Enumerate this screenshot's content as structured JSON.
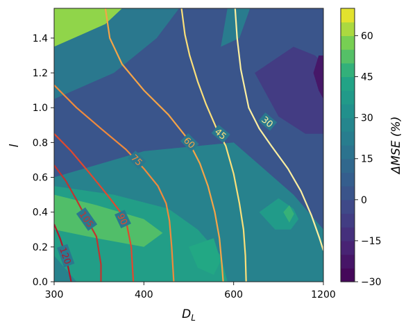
{
  "chart_data": {
    "type": "contour",
    "xlabel": "D",
    "xlabel_sub": "L",
    "ylabel": "l",
    "xticks": [
      300,
      400,
      600,
      1200
    ],
    "xtick_labels": [
      "300",
      "400",
      "600",
      "1200"
    ],
    "xlim": [
      300,
      1200
    ],
    "yticks": [
      0.0,
      0.2,
      0.4,
      0.6,
      0.8,
      1.0,
      1.2,
      1.4
    ],
    "ytick_labels": [
      "0.0",
      "0.2",
      "0.4",
      "0.6",
      "0.8",
      "1.0",
      "1.2",
      "1.4"
    ],
    "ylim": [
      0,
      1.571
    ],
    "grid": false,
    "colorbar": {
      "label": "ΔMSE (%)",
      "range": [
        -30,
        70
      ],
      "ticks": [
        -30,
        -15,
        0,
        15,
        30,
        45,
        60
      ],
      "tick_labels": [
        "−30",
        "−15",
        "0",
        "15",
        "30",
        "45",
        "60"
      ],
      "colormap": "viridis"
    },
    "contour_lines": [
      {
        "level": 120,
        "label": "120",
        "color": "#b0182c",
        "points": [
          [
            300,
            0.33
          ],
          [
            305,
            0.25
          ],
          [
            310,
            0.15
          ],
          [
            315,
            0.0
          ]
        ]
      },
      {
        "level": 105,
        "label": "105",
        "color": "#c2332f",
        "points": [
          [
            300,
            0.67
          ],
          [
            310,
            0.58
          ],
          [
            320,
            0.47
          ],
          [
            330,
            0.36
          ],
          [
            340,
            0.26
          ],
          [
            345,
            0.1
          ],
          [
            345,
            0.0
          ]
        ]
      },
      {
        "level": 90,
        "label": "90",
        "color": "#e0492e",
        "points": [
          [
            300,
            0.85
          ],
          [
            315,
            0.75
          ],
          [
            332,
            0.63
          ],
          [
            352,
            0.5
          ],
          [
            368,
            0.4
          ],
          [
            376,
            0.33
          ],
          [
            382,
            0.2
          ],
          [
            385,
            0.0
          ]
        ]
      },
      {
        "level": 75,
        "label": "75",
        "color": "#f08a3c",
        "points": [
          [
            300,
            1.13
          ],
          [
            320,
            1.0
          ],
          [
            345,
            0.88
          ],
          [
            375,
            0.76
          ],
          [
            400,
            0.65
          ],
          [
            422,
            0.55
          ],
          [
            436,
            0.45
          ],
          [
            442,
            0.35
          ],
          [
            446,
            0.2
          ],
          [
            450,
            0.0
          ]
        ]
      },
      {
        "level": 60,
        "label": "60",
        "color": "#f5a447",
        "points": [
          [
            350,
            1.57
          ],
          [
            355,
            1.4
          ],
          [
            370,
            1.25
          ],
          [
            400,
            1.1
          ],
          [
            440,
            0.96
          ],
          [
            475,
            0.83
          ],
          [
            505,
            0.68
          ],
          [
            525,
            0.55
          ],
          [
            543,
            0.4
          ],
          [
            556,
            0.25
          ],
          [
            563,
            0.1
          ],
          [
            567,
            0.0
          ]
        ]
      },
      {
        "level": 45,
        "label": "45",
        "color": "#fbe07a",
        "points": [
          [
            465,
            1.57
          ],
          [
            472,
            1.42
          ],
          [
            482,
            1.3
          ],
          [
            500,
            1.15
          ],
          [
            520,
            1.02
          ],
          [
            548,
            0.88
          ],
          [
            575,
            0.78
          ],
          [
            600,
            0.62
          ],
          [
            620,
            0.45
          ],
          [
            635,
            0.3
          ],
          [
            642,
            0.15
          ],
          [
            645,
            0.0
          ]
        ]
      },
      {
        "level": 30,
        "label": "30",
        "color": "#fcefa0",
        "points": [
          [
            605,
            1.57
          ],
          [
            612,
            1.4
          ],
          [
            625,
            1.22
          ],
          [
            655,
            1.0
          ],
          [
            700,
            0.88
          ],
          [
            760,
            0.78
          ],
          [
            860,
            0.65
          ],
          [
            960,
            0.52
          ],
          [
            1060,
            0.38
          ],
          [
            1150,
            0.25
          ],
          [
            1200,
            0.18
          ]
        ]
      }
    ],
    "contour_labels": [
      {
        "text": "120",
        "x": 310,
        "y": 0.15,
        "color": "#b0182c",
        "rotation": 70
      },
      {
        "text": "105",
        "x": 330,
        "y": 0.36,
        "color": "#c2332f",
        "rotation": 55
      },
      {
        "text": "90",
        "x": 371,
        "y": 0.36,
        "color": "#e0492e",
        "rotation": 65
      },
      {
        "text": "75",
        "x": 390,
        "y": 0.7,
        "color": "#f08a3c",
        "rotation": 45
      },
      {
        "text": "60",
        "x": 482,
        "y": 0.8,
        "color": "#f5a447",
        "rotation": 45
      },
      {
        "text": "45",
        "x": 560,
        "y": 0.85,
        "color": "#fbe07a",
        "rotation": 40
      },
      {
        "text": "30",
        "x": 740,
        "y": 0.92,
        "color": "#fcefa0",
        "rotation": 40
      }
    ],
    "fill_regions": [
      {
        "value": 3,
        "points": [
          [
            300,
            0.6
          ],
          [
            300,
            1.57
          ],
          [
            1200,
            1.57
          ],
          [
            1200,
            0.3
          ],
          [
            900,
            0.5
          ],
          [
            600,
            0.8
          ],
          [
            400,
            0.75
          ]
        ]
      },
      {
        "value": 25,
        "points": [
          [
            300,
            0.0
          ],
          [
            300,
            0.6
          ],
          [
            400,
            0.75
          ],
          [
            600,
            0.8
          ],
          [
            900,
            0.5
          ],
          [
            1200,
            0.3
          ],
          [
            1200,
            0.0
          ]
        ]
      },
      {
        "value": 40,
        "points": [
          [
            300,
            0.15
          ],
          [
            300,
            0.55
          ],
          [
            360,
            0.5
          ],
          [
            440,
            0.42
          ],
          [
            500,
            0.3
          ],
          [
            560,
            0.15
          ],
          [
            580,
            0.0
          ],
          [
            320,
            0.0
          ]
        ]
      },
      {
        "value": 52,
        "points": [
          [
            300,
            0.3
          ],
          [
            300,
            0.5
          ],
          [
            340,
            0.44
          ],
          [
            400,
            0.36
          ],
          [
            430,
            0.28
          ],
          [
            400,
            0.2
          ],
          [
            340,
            0.25
          ]
        ]
      },
      {
        "value": 45,
        "points": [
          [
            480,
            0.2
          ],
          [
            540,
            0.25
          ],
          [
            560,
            0.12
          ],
          [
            540,
            0.04
          ],
          [
            500,
            0.08
          ]
        ]
      },
      {
        "value": 38,
        "points": [
          [
            700,
            0.4
          ],
          [
            800,
            0.48
          ],
          [
            900,
            0.42
          ],
          [
            940,
            0.36
          ],
          [
            880,
            0.3
          ],
          [
            780,
            0.3
          ]
        ]
      },
      {
        "value": 48,
        "points": [
          [
            830,
            0.4
          ],
          [
            870,
            0.44
          ],
          [
            905,
            0.39
          ],
          [
            870,
            0.34
          ]
        ]
      },
      {
        "value": -8,
        "points": [
          [
            680,
            1.2
          ],
          [
            900,
            1.35
          ],
          [
            1100,
            1.3
          ],
          [
            1200,
            1.25
          ],
          [
            1200,
            0.85
          ],
          [
            1000,
            0.85
          ],
          [
            800,
            0.95
          ]
        ]
      },
      {
        "value": -22,
        "points": [
          [
            1080,
            1.2
          ],
          [
            1140,
            1.3
          ],
          [
            1200,
            1.3
          ],
          [
            1200,
            1.05
          ],
          [
            1140,
            1.1
          ]
        ]
      },
      {
        "value": 60,
        "points": [
          [
            300,
            1.35
          ],
          [
            300,
            1.57
          ],
          [
            370,
            1.57
          ],
          [
            350,
            1.48
          ]
        ]
      },
      {
        "value": 20,
        "points": [
          [
            300,
            1.05
          ],
          [
            300,
            1.35
          ],
          [
            350,
            1.48
          ],
          [
            370,
            1.57
          ],
          [
            460,
            1.57
          ],
          [
            420,
            1.4
          ],
          [
            360,
            1.2
          ]
        ]
      },
      {
        "value": 22,
        "points": [
          [
            560,
            1.35
          ],
          [
            580,
            1.57
          ],
          [
            660,
            1.57
          ],
          [
            620,
            1.4
          ]
        ]
      }
    ]
  }
}
